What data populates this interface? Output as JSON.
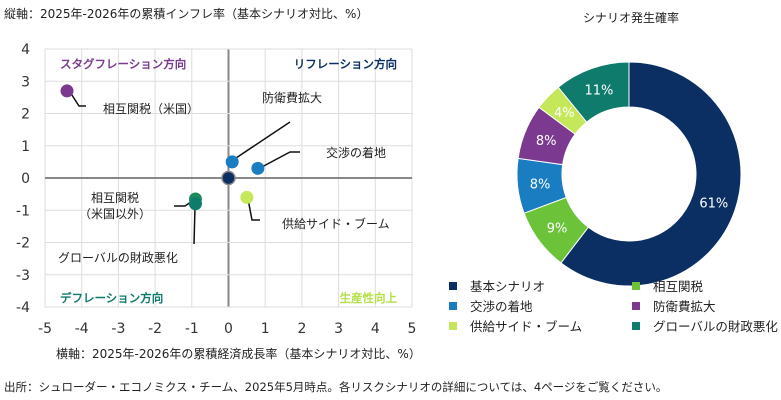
{
  "header": {
    "ylabel": "縦軸：2025年-2026年の累積インフレ率（基本シナリオ対比、%）",
    "xlabel": "横軸：2025年-2026年の累積経済成長率（基本シナリオ対比、%）",
    "source": "出所：シュローダー・エコノミクス・チーム、2025年5月時点。各リスクシナリオの詳細については、4ページをご覧ください。"
  },
  "chart_data": [
    {
      "type": "scatter",
      "xlim": [
        -5,
        5
      ],
      "ylim": [
        -4,
        4
      ],
      "xticks": [
        -5,
        -4,
        -3,
        -2,
        -1,
        0,
        1,
        2,
        3,
        4,
        5
      ],
      "yticks": [
        -4,
        -3,
        -2,
        -1,
        0,
        1,
        2,
        3,
        4
      ],
      "grid": true,
      "quadrants": [
        {
          "label": "スタグフレーション方向",
          "color": "#7b3a8f",
          "pos": "top-left"
        },
        {
          "label": "リフレーション方向",
          "color": "#0b2f63",
          "pos": "top-right"
        },
        {
          "label": "デフレーション方向",
          "color": "#0e7b6c",
          "pos": "bottom-left"
        },
        {
          "label": "生産性向上",
          "color": "#b5e04a",
          "pos": "bottom-right"
        }
      ],
      "points": [
        {
          "name": "基本シナリオ",
          "x": 0,
          "y": 0,
          "color": "#0b2f63",
          "label": ""
        },
        {
          "name": "防衛費拡大",
          "x": 0.1,
          "y": 0.5,
          "color": "#1a7cc1",
          "label": "防衛費拡大"
        },
        {
          "name": "交渉の着地",
          "x": 0.8,
          "y": 0.3,
          "color": "#1a7cc1",
          "label": "交渉の着地"
        },
        {
          "name": "相互関税（米国）",
          "x": -4.4,
          "y": 2.7,
          "color": "#7b3a8f",
          "label": "相互関税（米国）"
        },
        {
          "name": "供給サイド・ブーム",
          "x": 0.5,
          "y": -0.6,
          "color": "#c5e85a",
          "label": "供給サイド・ブーム"
        },
        {
          "name": "相互関税（米国以外）",
          "x": -0.9,
          "y": -0.65,
          "color": "#1e8a5e",
          "label": "相互関税\n（米国以外）"
        },
        {
          "name": "グローバルの財政悪化",
          "x": -0.9,
          "y": -0.8,
          "color": "#0e7b6c",
          "label": "グローバルの財政悪化"
        }
      ]
    },
    {
      "type": "pie",
      "title": "シナリオ発生確率",
      "slices": [
        {
          "label": "基本シナリオ",
          "value": 61,
          "color": "#0b2f63"
        },
        {
          "label": "相互関税",
          "value": 9,
          "color": "#6cc33a"
        },
        {
          "label": "交渉の着地",
          "value": 8,
          "color": "#1a7cc1"
        },
        {
          "label": "防衛費拡大",
          "value": 8,
          "color": "#7b3a8f"
        },
        {
          "label": "供給サイド・ブーム",
          "value": 4,
          "color": "#c5e85a"
        },
        {
          "label": "グローバルの財政悪化",
          "value": 11,
          "color": "#0e7b6c"
        }
      ]
    }
  ]
}
